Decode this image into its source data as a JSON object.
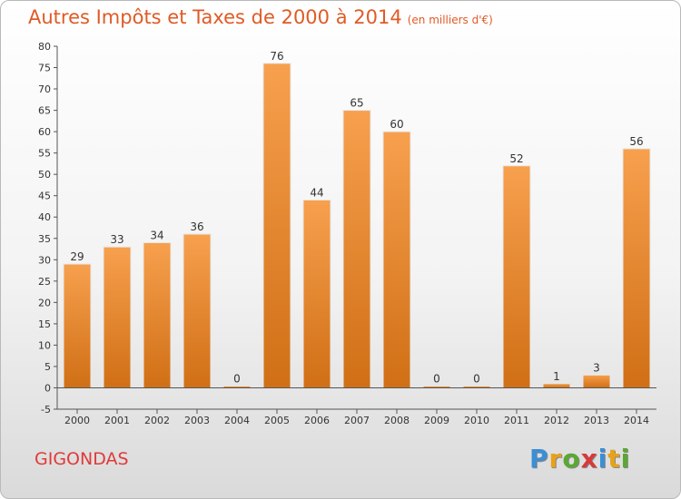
{
  "header": {
    "title": "Autres Impôts et Taxes de 2000 à 2014",
    "subtitle": "(en milliers d'€)"
  },
  "footer": {
    "commune": "GIGONDAS",
    "brand": "Proxiti"
  },
  "colors": {
    "bar_top": "#f7a04e",
    "bar_bottom": "#d06f15",
    "title": "#e05a26",
    "commune": "#e03a3a"
  },
  "chart_data": {
    "type": "bar",
    "categories": [
      "2000",
      "2001",
      "2002",
      "2003",
      "2004",
      "2005",
      "2006",
      "2007",
      "2008",
      "2009",
      "2010",
      "2011",
      "2012",
      "2013",
      "2014"
    ],
    "values": [
      29,
      33,
      34,
      36,
      0,
      76,
      44,
      65,
      60,
      0,
      0,
      52,
      1,
      3,
      56
    ],
    "data_labels": [
      "29",
      "33",
      "34",
      "36",
      "0",
      "76",
      "44",
      "65",
      "60",
      "0",
      "0",
      "52",
      "1",
      "3",
      "56"
    ],
    "ylim": [
      -5,
      80
    ],
    "yticks": [
      -5,
      0,
      5,
      10,
      15,
      20,
      25,
      30,
      35,
      40,
      45,
      50,
      55,
      60,
      65,
      70,
      75,
      80
    ],
    "grid": false
  }
}
